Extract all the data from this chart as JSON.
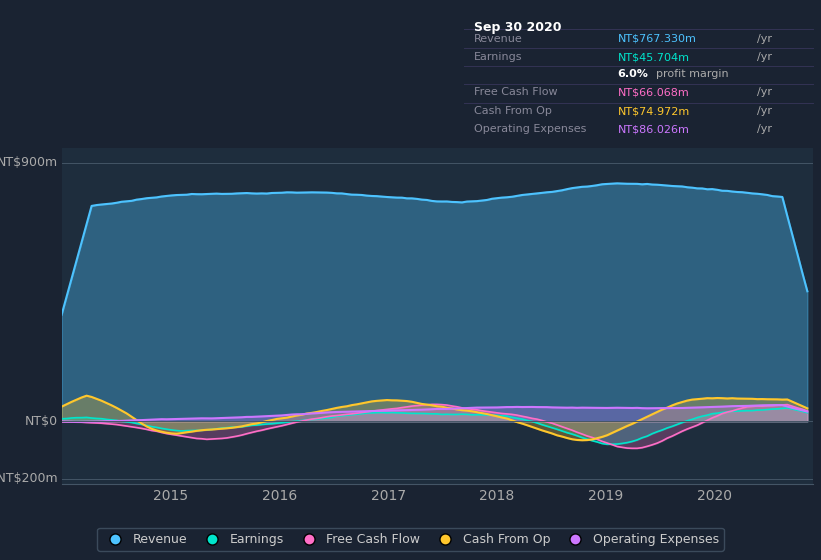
{
  "bg_color": "#1a2332",
  "plot_bg_color": "#1e2d3d",
  "x_ticks": [
    2015,
    2016,
    2017,
    2018,
    2019,
    2020
  ],
  "colors": {
    "revenue": "#4dc3ff",
    "earnings": "#00e5cc",
    "free_cash_flow": "#ff6ec7",
    "cash_from_op": "#ffc72c",
    "operating_expenses": "#cc77ff"
  },
  "legend_labels": [
    "Revenue",
    "Earnings",
    "Free Cash Flow",
    "Cash From Op",
    "Operating Expenses"
  ],
  "infobox": {
    "title": "Sep 30 2020",
    "rows": [
      {
        "label": "Revenue",
        "value": "NT$767.330m",
        "unit": "/yr",
        "color": "#4dc3ff"
      },
      {
        "label": "Earnings",
        "value": "NT$45.704m",
        "unit": "/yr",
        "color": "#00e5cc"
      },
      {
        "label": "",
        "value": "6.0%",
        "unit": " profit margin",
        "color": "#ffffff"
      },
      {
        "label": "Free Cash Flow",
        "value": "NT$66.068m",
        "unit": "/yr",
        "color": "#ff6ec7"
      },
      {
        "label": "Cash From Op",
        "value": "NT$74.972m",
        "unit": "/yr",
        "color": "#ffc72c"
      },
      {
        "label": "Operating Expenses",
        "value": "NT$86.026m",
        "unit": "/yr",
        "color": "#cc77ff"
      }
    ]
  }
}
